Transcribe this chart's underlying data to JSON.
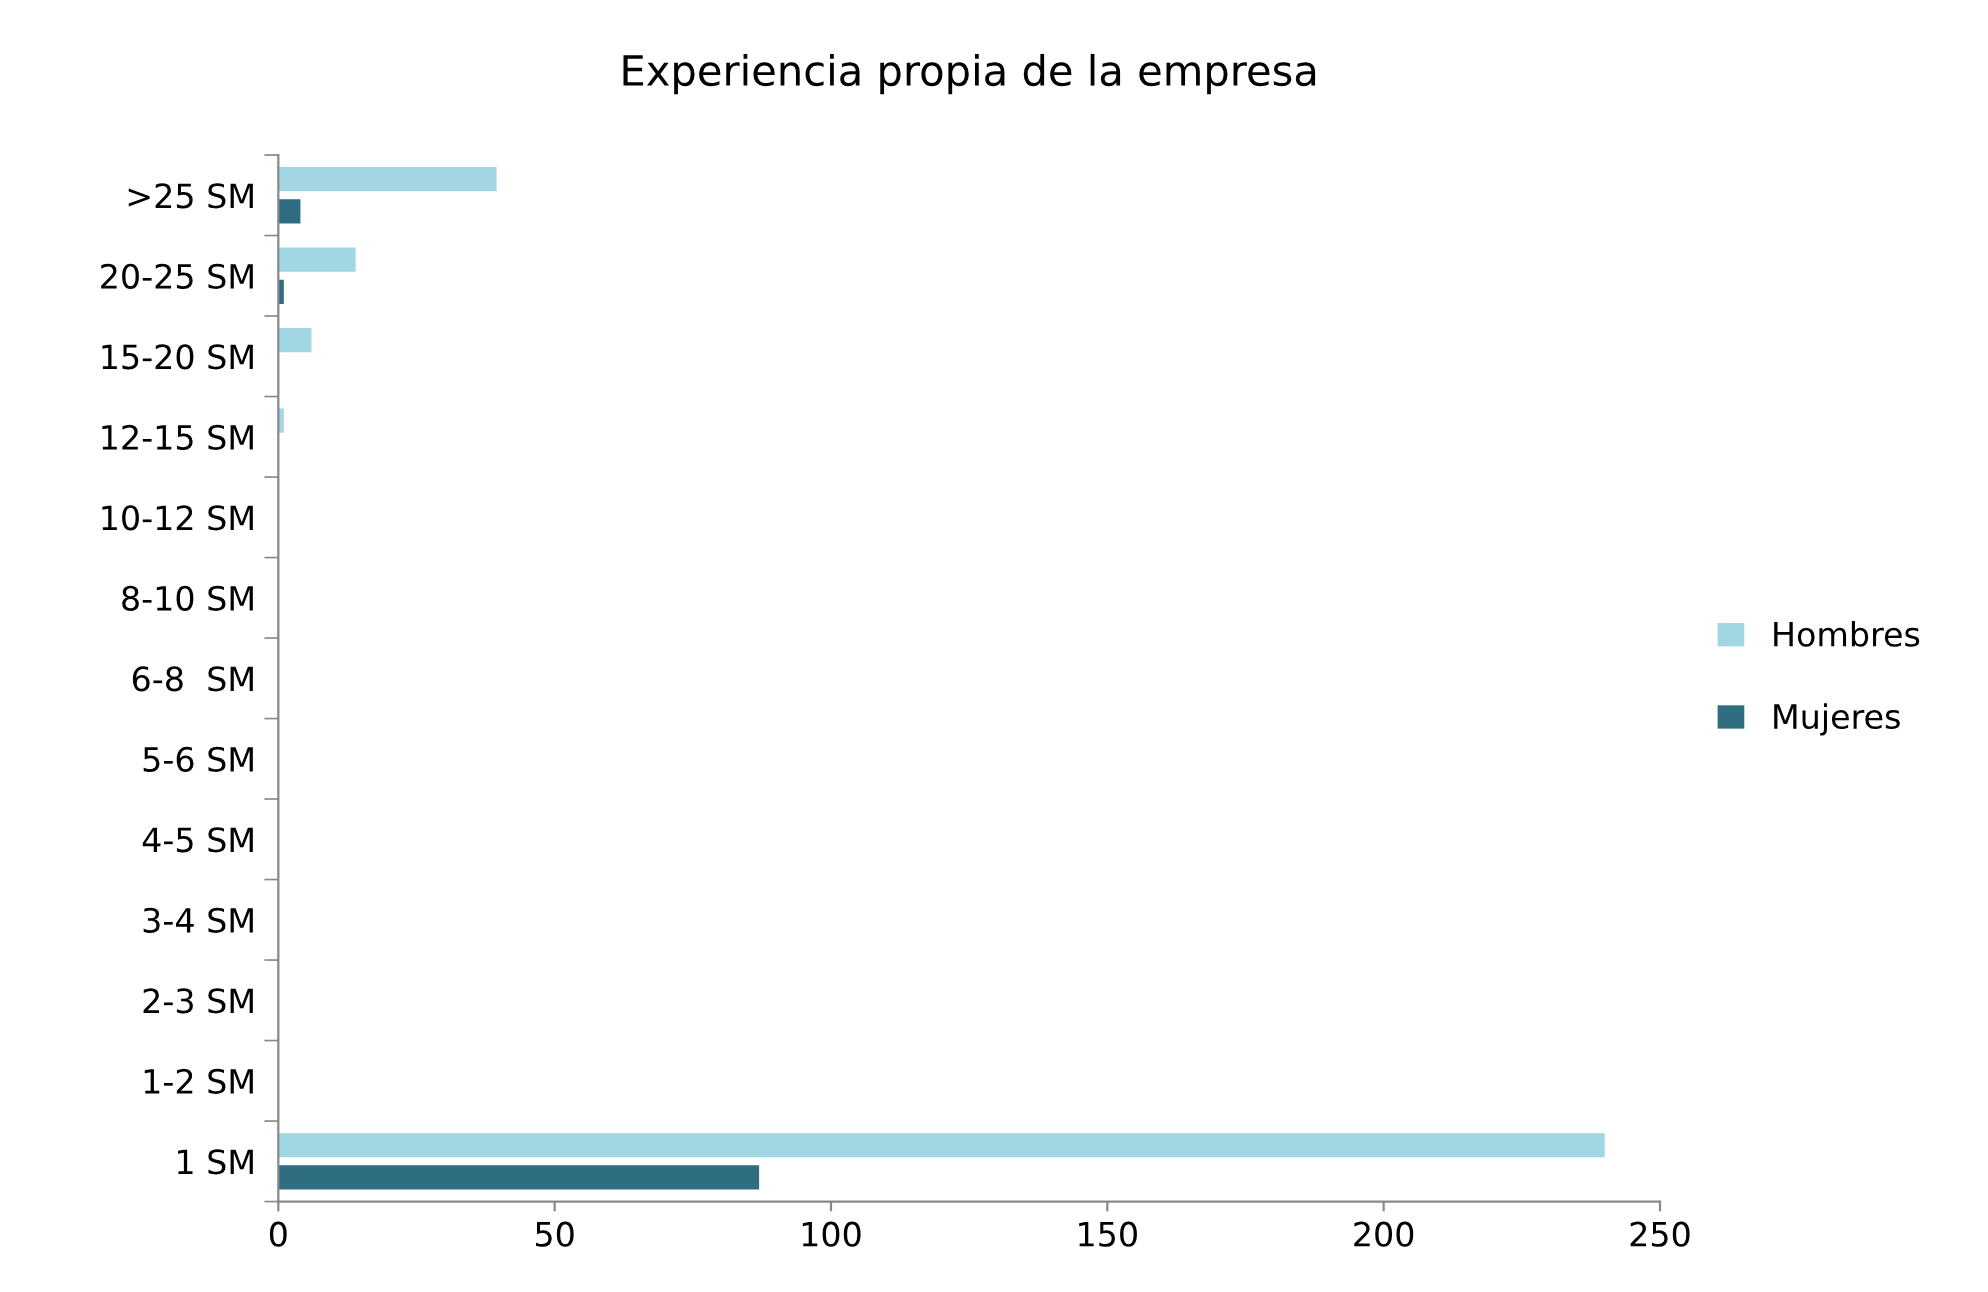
{
  "chart_data": {
    "type": "bar",
    "orientation": "horizontal",
    "title": "Experiencia propia de la empresa",
    "categories": [
      ">25 SM",
      "20-25 SM",
      "15-20 SM",
      "12-15 SM",
      "10-12 SM",
      "8-10 SM",
      "6-8  SM",
      "5-6 SM",
      "4-5 SM",
      "3-4 SM",
      "2-3 SM",
      "1-2 SM",
      "1 SM"
    ],
    "series": [
      {
        "name": "Hombres",
        "color": "#a3d6e3",
        "values": [
          39.5,
          14,
          6,
          1,
          0,
          0,
          0,
          0,
          0,
          0,
          0,
          0,
          240
        ]
      },
      {
        "name": "Mujeres",
        "color": "#2e6e80",
        "values": [
          4,
          1,
          0,
          0,
          0,
          0,
          0,
          0,
          0,
          0,
          0,
          0,
          87
        ]
      }
    ],
    "xlim": [
      0,
      250
    ],
    "xticks": [
      0,
      50,
      100,
      150,
      200,
      250
    ],
    "grid": false,
    "legend": "right"
  }
}
